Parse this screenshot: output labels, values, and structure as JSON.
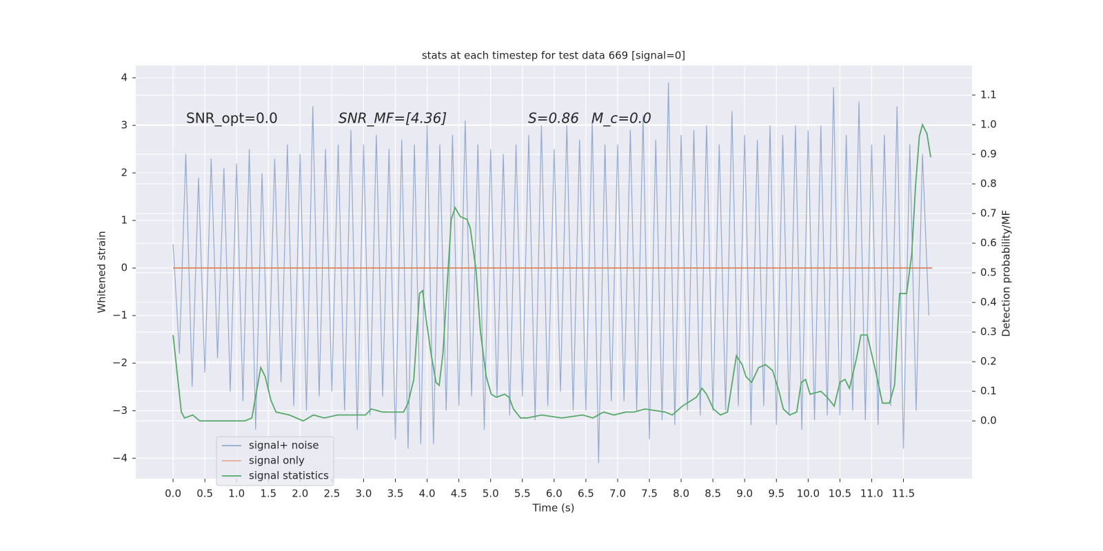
{
  "chart_data": {
    "type": "line",
    "title": "stats at each timestep for test data 669 [signal=0]",
    "xlabel": "Time (s)",
    "ylabel": "Whitened strain",
    "y2label": "Detection probability/MF",
    "annotations": [
      "SNR_opt=0.0",
      "SNR_MF=[4.36]",
      "S=0.86",
      "M_c=0.0"
    ],
    "xlim": [
      -0.587,
      12.58
    ],
    "ylim": [
      -4.43,
      4.26
    ],
    "y2lim": [
      -0.195,
      1.2
    ],
    "xticks": [
      {
        "value": 0,
        "label": "0.0"
      },
      0.5,
      {
        "value": 1,
        "label": "1.0"
      },
      1.5,
      {
        "value": 2,
        "label": "2.0"
      },
      2.5,
      {
        "value": 3,
        "label": "3.0"
      },
      3.5,
      {
        "value": 4,
        "label": "4.0"
      },
      4.5,
      {
        "value": 5,
        "label": "5.0"
      },
      5.5,
      {
        "value": 6,
        "label": "6.0"
      },
      6.5,
      {
        "value": 7,
        "label": "7.0"
      },
      7.5,
      {
        "value": 8,
        "label": "8.0"
      },
      8.5,
      {
        "value": 9,
        "label": "9.0"
      },
      9.5,
      {
        "value": 10,
        "label": "10.0"
      },
      10.5,
      {
        "value": 11,
        "label": "11.0"
      },
      11.5
    ],
    "yticks": [
      {
        "value": -4,
        "label": "−4"
      },
      {
        "value": -3,
        "label": "−3"
      },
      {
        "value": -2,
        "label": "−2"
      },
      {
        "value": -1,
        "label": "−1"
      },
      0,
      1,
      2,
      3,
      4
    ],
    "y2ticks": [
      {
        "value": 0,
        "label": "0.0"
      },
      0.1,
      0.2,
      0.3,
      0.4,
      0.5,
      0.6,
      0.7,
      0.8,
      0.9,
      {
        "value": 1,
        "label": "1.0"
      },
      1.1
    ],
    "grid": true,
    "legend": "lower left",
    "series": [
      {
        "name": "signal+ noise",
        "color": "#4c72b0",
        "x": [
          0,
          0.1,
          0.2,
          0.3,
          0.4,
          0.5,
          0.6,
          0.7,
          0.8,
          0.9,
          1,
          1.1,
          1.2,
          1.3,
          1.4,
          1.5,
          1.6,
          1.7,
          1.8,
          1.9,
          2,
          2.1,
          2.2,
          2.3,
          2.4,
          2.5,
          2.6,
          2.7,
          2.8,
          2.9,
          3,
          3.1,
          3.2,
          3.3,
          3.4,
          3.5,
          3.6,
          3.7,
          3.8,
          3.9,
          4,
          4.1,
          4.2,
          4.3,
          4.4,
          4.5,
          4.6,
          4.7,
          4.8,
          4.9,
          5,
          5.1,
          5.2,
          5.3,
          5.4,
          5.5,
          5.6,
          5.7,
          5.8,
          5.9,
          6,
          6.1,
          6.2,
          6.3,
          6.4,
          6.5,
          6.6,
          6.7,
          6.8,
          6.9,
          7,
          7.1,
          7.2,
          7.3,
          7.4,
          7.5,
          7.6,
          7.7,
          7.8,
          7.9,
          8,
          8.1,
          8.2,
          8.3,
          8.4,
          8.5,
          8.6,
          8.7,
          8.8,
          8.9,
          9,
          9.1,
          9.2,
          9.3,
          9.4,
          9.5,
          9.6,
          9.7,
          9.8,
          9.9,
          10,
          10.1,
          10.2,
          10.3,
          10.4,
          10.5,
          10.6,
          10.7,
          10.8,
          10.9,
          11,
          11.1,
          11.2,
          11.3,
          11.4,
          11.5,
          11.6,
          11.7,
          11.8,
          11.9
        ],
        "values": [
          0.5,
          -1.8,
          2.4,
          -2.5,
          1.9,
          -2.2,
          2.3,
          -1.9,
          2.1,
          -2.6,
          2.2,
          -2.8,
          2.5,
          -3.4,
          2.0,
          -2.6,
          2.3,
          -2.4,
          2.6,
          -2.9,
          2.4,
          -3.0,
          3.4,
          -2.7,
          2.5,
          -2.6,
          2.6,
          -3.0,
          2.9,
          -3.4,
          2.6,
          -3.1,
          2.8,
          -2.7,
          2.5,
          -3.6,
          2.7,
          -3.8,
          2.6,
          -3.7,
          3.0,
          -3.7,
          2.6,
          -3.0,
          2.8,
          -2.9,
          3.1,
          -2.7,
          2.6,
          -3.4,
          2.5,
          -2.7,
          2.4,
          -3.1,
          2.6,
          -2.7,
          2.8,
          -3.2,
          3.0,
          -2.9,
          2.5,
          -2.6,
          3.0,
          -3.0,
          2.7,
          -3.0,
          3.1,
          -4.1,
          2.6,
          -2.8,
          2.6,
          -2.8,
          2.9,
          -3.0,
          3.2,
          -3.6,
          2.7,
          -3.2,
          3.9,
          -3.3,
          2.8,
          -3.0,
          2.9,
          -3.1,
          3.0,
          -3.0,
          2.6,
          -3.0,
          3.3,
          -2.9,
          2.8,
          -3.3,
          2.7,
          -2.9,
          3.0,
          -3.3,
          2.8,
          -3.1,
          3.0,
          -3.4,
          2.9,
          -3.2,
          3.0,
          -3.1,
          3.8,
          -3.1,
          2.8,
          -3.0,
          3.5,
          -3.2,
          2.6,
          -3.3,
          2.8,
          -2.9,
          3.4,
          -3.8,
          2.6,
          -3.0,
          2.4,
          -1.0
        ]
      },
      {
        "name": "signal only",
        "color": "#dd8452",
        "x": [
          0,
          11.95
        ],
        "values": [
          0,
          0
        ]
      },
      {
        "name": "signal statistics",
        "color": "#55a868",
        "axis": "y2",
        "x": [
          0,
          0.13,
          0.18,
          0.31,
          0.42,
          0.75,
          1.13,
          1.24,
          1.38,
          1.45,
          1.54,
          1.62,
          1.83,
          2.05,
          2.21,
          2.38,
          2.59,
          2.92,
          3.03,
          3.12,
          3.3,
          3.63,
          3.7,
          3.79,
          3.88,
          3.93,
          3.98,
          4.06,
          4.14,
          4.19,
          4.25,
          4.31,
          4.38,
          4.44,
          4.52,
          4.63,
          4.68,
          4.77,
          4.84,
          4.93,
          5.01,
          5.09,
          5.22,
          5.29,
          5.36,
          5.47,
          5.58,
          5.8,
          6.12,
          6.45,
          6.61,
          6.78,
          6.94,
          7.13,
          7.26,
          7.43,
          7.75,
          7.86,
          8.02,
          8.24,
          8.33,
          8.4,
          8.51,
          8.62,
          8.73,
          8.87,
          8.96,
          9.02,
          9.11,
          9.22,
          9.33,
          9.44,
          9.54,
          9.61,
          9.71,
          9.82,
          9.89,
          9.96,
          10.03,
          10.2,
          10.3,
          10.41,
          10.5,
          10.58,
          10.65,
          10.76,
          10.83,
          10.93,
          11.06,
          11.17,
          11.28,
          11.36,
          11.44,
          11.55,
          11.63,
          11.69,
          11.75,
          11.8,
          11.87,
          11.93
        ],
        "values": [
          0.29,
          0.03,
          0.01,
          0.02,
          0,
          0,
          0,
          0.01,
          0.18,
          0.15,
          0.07,
          0.03,
          0.02,
          0,
          0.02,
          0.01,
          0.02,
          0.02,
          0.02,
          0.04,
          0.03,
          0.03,
          0.06,
          0.14,
          0.43,
          0.44,
          0.35,
          0.23,
          0.13,
          0.12,
          0.23,
          0.44,
          0.68,
          0.72,
          0.69,
          0.68,
          0.65,
          0.51,
          0.3,
          0.15,
          0.09,
          0.08,
          0.09,
          0.08,
          0.04,
          0.01,
          0.01,
          0.02,
          0.01,
          0.02,
          0.01,
          0.03,
          0.02,
          0.03,
          0.03,
          0.04,
          0.03,
          0.02,
          0.05,
          0.08,
          0.11,
          0.09,
          0.04,
          0.02,
          0.03,
          0.22,
          0.19,
          0.15,
          0.13,
          0.18,
          0.19,
          0.17,
          0.1,
          0.04,
          0.02,
          0.03,
          0.13,
          0.14,
          0.09,
          0.1,
          0.08,
          0.05,
          0.13,
          0.14,
          0.11,
          0.21,
          0.29,
          0.29,
          0.17,
          0.06,
          0.06,
          0.12,
          0.43,
          0.43,
          0.56,
          0.79,
          0.96,
          1,
          0.97,
          0.89
        ]
      }
    ]
  }
}
